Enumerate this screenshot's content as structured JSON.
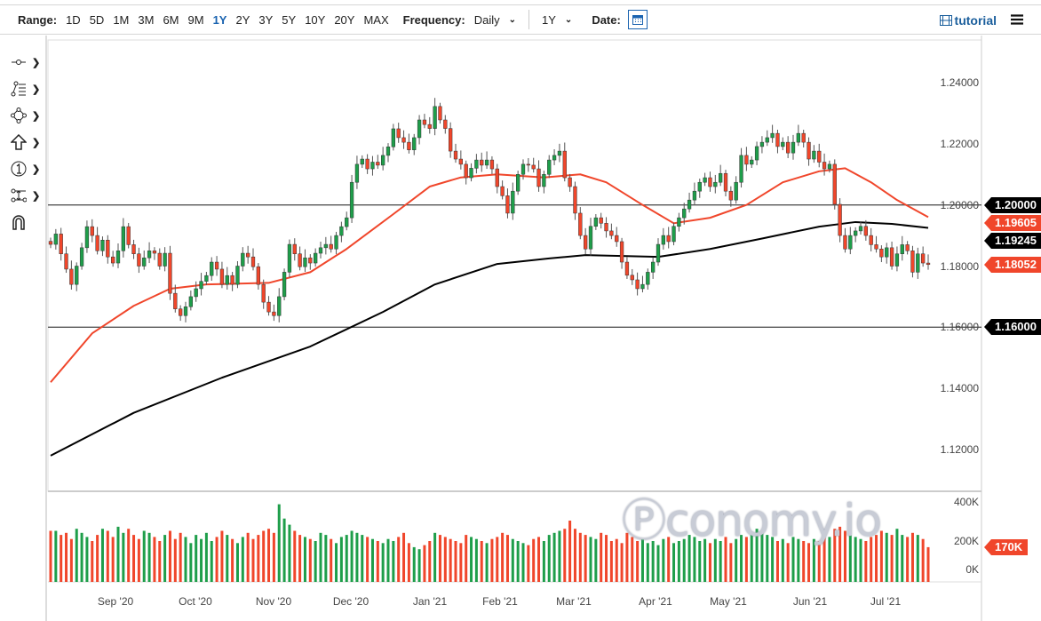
{
  "toolbar": {
    "range_label": "Range:",
    "ranges": [
      "1D",
      "5D",
      "1M",
      "3M",
      "6M",
      "9M",
      "1Y",
      "2Y",
      "3Y",
      "5Y",
      "10Y",
      "20Y",
      "MAX"
    ],
    "active_range": "1Y",
    "frequency_label": "Frequency:",
    "frequency_value": "Daily",
    "period_value": "1Y",
    "date_label": "Date:",
    "tutorial_label": "tutorial"
  },
  "drawing_tools": [
    "line-tool-icon",
    "fibonacci-tool-icon",
    "shape-tool-icon",
    "arrow-tool-icon",
    "annotation-number-icon",
    "measure-tool-icon",
    "magnet-icon"
  ],
  "watermark": "economy.io",
  "colors": {
    "up": "#1e9e4a",
    "down": "#f0462b",
    "ma_fast": "#f0462b",
    "ma_slow": "#000000",
    "hline": "#555555"
  },
  "chart_data": {
    "type": "candlestick",
    "x_tick_labels": [
      "Sep '20",
      "Oct '20",
      "Nov '20",
      "Dec '20",
      "Jan '21",
      "Feb '21",
      "Mar '21",
      "Apr '21",
      "May '21",
      "Jun '21",
      "Jul '21"
    ],
    "y_ticks": [
      "1.12000",
      "1.14000",
      "1.16000",
      "1.18000",
      "1.20000",
      "1.22000",
      "1.24000"
    ],
    "ylim": [
      1.112,
      1.248
    ],
    "closes": [
      1.1871,
      1.1905,
      1.184,
      1.179,
      1.174,
      1.18,
      1.186,
      1.1929,
      1.19,
      1.185,
      1.1885,
      1.183,
      1.181,
      1.185,
      1.1929,
      1.187,
      1.184,
      1.18,
      1.1827,
      1.185,
      1.1842,
      1.18,
      1.1842,
      1.1711,
      1.166,
      1.1638,
      1.1667,
      1.17,
      1.1726,
      1.175,
      1.1769,
      1.1813,
      1.179,
      1.174,
      1.1769,
      1.174,
      1.18,
      1.1842,
      1.183,
      1.1798,
      1.174,
      1.1682,
      1.165,
      1.1638,
      1.17,
      1.178,
      1.1871,
      1.184,
      1.1798,
      1.1827,
      1.181,
      1.1842,
      1.186,
      1.1871,
      1.1856,
      1.19,
      1.1929,
      1.1958,
      1.2074,
      1.2133,
      1.215,
      1.2118,
      1.214,
      1.213,
      1.2162,
      1.219,
      1.2249,
      1.222,
      1.2205,
      1.218,
      1.222,
      1.2278,
      1.2263,
      1.225,
      1.2322,
      1.2278,
      1.225,
      1.2176,
      1.215,
      1.2133,
      1.2089,
      1.212,
      1.2147,
      1.213,
      1.2147,
      1.2118,
      1.206,
      1.203,
      1.1973,
      1.2045,
      1.21,
      1.2133,
      1.213,
      1.2118,
      1.206,
      1.21,
      1.2147,
      1.2162,
      1.2176,
      1.2089,
      1.206,
      1.1973,
      1.19,
      1.1856,
      1.193,
      1.1958,
      1.194,
      1.1915,
      1.19,
      1.188,
      1.1813,
      1.177,
      1.1755,
      1.1726,
      1.174,
      1.178,
      1.1813,
      1.1871,
      1.19,
      1.188,
      1.193,
      1.1958,
      1.1987,
      1.2016,
      1.2045,
      1.2074,
      1.2089,
      1.206,
      1.2074,
      1.2103,
      1.2045,
      1.2016,
      1.2074,
      1.2162,
      1.2133,
      1.2147,
      1.2191,
      1.2205,
      1.222,
      1.2234,
      1.2191,
      1.2205,
      1.217,
      1.2205,
      1.2234,
      1.2205,
      1.215,
      1.2176,
      1.214,
      1.2118,
      1.2133,
      1.2002,
      1.19,
      1.1856,
      1.19,
      1.1915,
      1.193,
      1.19,
      1.187,
      1.1856,
      1.183,
      1.186,
      1.18,
      1.184,
      1.187,
      1.185,
      1.178,
      1.184,
      1.181,
      1.1805
    ],
    "moving_averages": [
      {
        "color": "#f0462b",
        "points": [
          [
            0,
            1.142
          ],
          [
            8,
            1.158
          ],
          [
            16,
            1.167
          ],
          [
            23,
            1.1726
          ],
          [
            30,
            1.174
          ],
          [
            42,
            1.1745
          ],
          [
            50,
            1.178
          ],
          [
            57,
            1.1856
          ],
          [
            66,
            1.197
          ],
          [
            73,
            1.206
          ],
          [
            79,
            1.209
          ],
          [
            86,
            1.21
          ],
          [
            95,
            1.209
          ],
          [
            102,
            1.21
          ],
          [
            107,
            1.2074
          ],
          [
            114,
            1.2
          ],
          [
            120,
            1.194
          ],
          [
            127,
            1.1958
          ],
          [
            134,
            1.2
          ],
          [
            141,
            1.2074
          ],
          [
            148,
            1.211
          ],
          [
            153,
            1.212
          ],
          [
            158,
            1.2074
          ],
          [
            163,
            1.2016
          ],
          [
            169,
            1.196
          ]
        ]
      },
      {
        "color": "#000000",
        "points": [
          [
            0,
            1.118
          ],
          [
            16,
            1.132
          ],
          [
            33,
            1.1435
          ],
          [
            50,
            1.1537
          ],
          [
            64,
            1.165
          ],
          [
            74,
            1.174
          ],
          [
            86,
            1.1807
          ],
          [
            96,
            1.1825
          ],
          [
            103,
            1.1836
          ],
          [
            117,
            1.183
          ],
          [
            127,
            1.1856
          ],
          [
            137,
            1.189
          ],
          [
            148,
            1.1929
          ],
          [
            155,
            1.1944
          ],
          [
            162,
            1.1938
          ],
          [
            169,
            1.1925
          ]
        ]
      }
    ],
    "horizontal_lines": [
      1.2,
      1.16
    ],
    "price_tags": [
      {
        "label": "1.20000",
        "value": 1.2,
        "style": "black"
      },
      {
        "label": "1.19605",
        "value": 1.19605,
        "style": "red"
      },
      {
        "label": "1.19245",
        "value": 1.19245,
        "style": "black"
      },
      {
        "label": "1.18052",
        "value": 1.18052,
        "style": "red"
      },
      {
        "label": "1.16000",
        "value": 1.16,
        "style": "black"
      }
    ],
    "volume": {
      "ticks": [
        "400K",
        "200K",
        "0K"
      ],
      "ylim": [
        0,
        400
      ],
      "last_label": "170K",
      "values_k": [
        250,
        250,
        230,
        240,
        210,
        260,
        240,
        220,
        200,
        230,
        260,
        250,
        220,
        270,
        240,
        260,
        230,
        210,
        250,
        240,
        220,
        200,
        230,
        250,
        210,
        240,
        220,
        190,
        230,
        210,
        240,
        200,
        220,
        250,
        230,
        210,
        190,
        220,
        240,
        210,
        230,
        250,
        260,
        240,
        380,
        310,
        280,
        250,
        230,
        220,
        210,
        200,
        240,
        230,
        210,
        190,
        220,
        230,
        250,
        240,
        230,
        220,
        210,
        200,
        190,
        210,
        200,
        220,
        240,
        190,
        170,
        160,
        180,
        200,
        240,
        230,
        220,
        210,
        200,
        190,
        230,
        220,
        210,
        200,
        190,
        210,
        220,
        240,
        230,
        210,
        200,
        190,
        180,
        210,
        220,
        200,
        230,
        240,
        250,
        260,
        300,
        260,
        240,
        230,
        220,
        210,
        240,
        230,
        200,
        210,
        190,
        240,
        220,
        200,
        210,
        190,
        200,
        180,
        210,
        220,
        190,
        200,
        210,
        230,
        220,
        200,
        210,
        190,
        210,
        200,
        220,
        190,
        210,
        230,
        220,
        240,
        260,
        250,
        230,
        220,
        200,
        210,
        190,
        220,
        210,
        200,
        190,
        210,
        200,
        230,
        220,
        260,
        270,
        250,
        230,
        220,
        210,
        200,
        220,
        230,
        250,
        240,
        230,
        260,
        230,
        220,
        240,
        230,
        210,
        170
      ]
    }
  }
}
